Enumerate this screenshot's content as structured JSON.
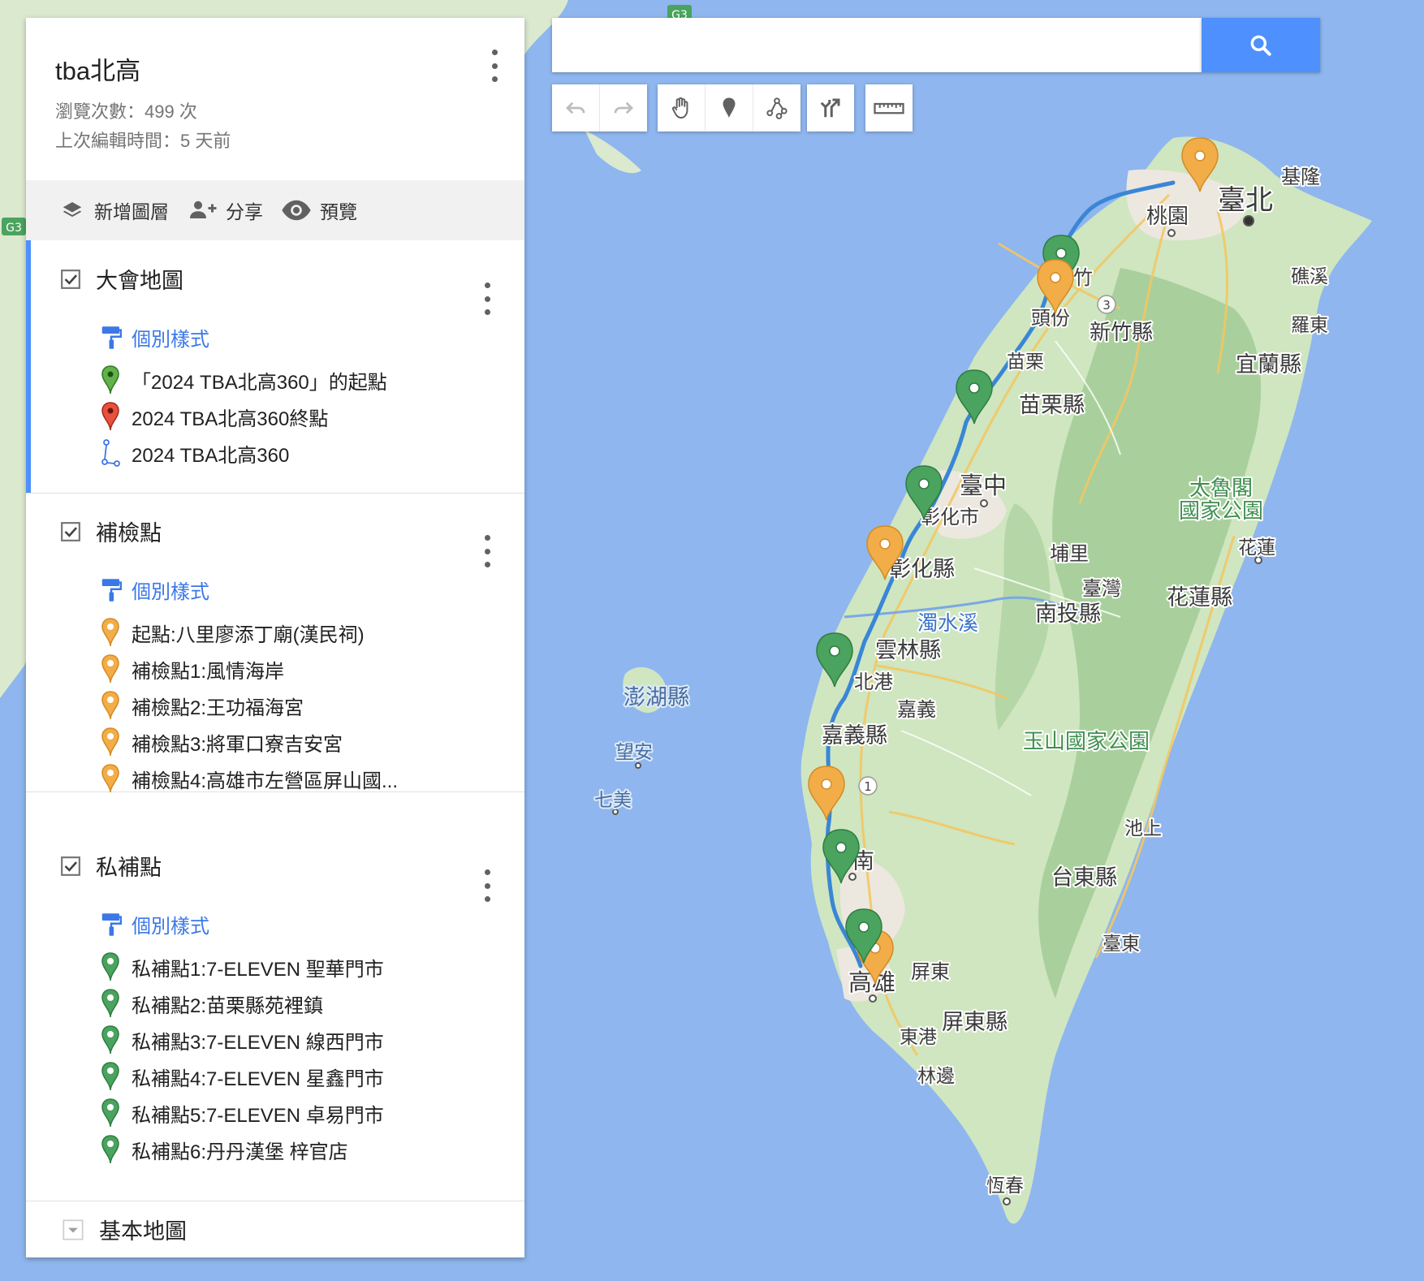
{
  "map": {
    "labels": [
      {
        "id": "keelung",
        "text": "基隆"
      },
      {
        "id": "taipei",
        "text": "臺北"
      },
      {
        "id": "taoyuan",
        "text": "桃園"
      },
      {
        "id": "hsinchu",
        "text": "竹"
      },
      {
        "id": "toufen",
        "text": "頭份"
      },
      {
        "id": "hsinchu-county",
        "text": "新竹縣"
      },
      {
        "id": "jiaoxi",
        "text": "礁溪"
      },
      {
        "id": "luodong",
        "text": "羅東"
      },
      {
        "id": "yilan-county",
        "text": "宜蘭縣"
      },
      {
        "id": "miaoli",
        "text": "苗栗"
      },
      {
        "id": "miaoli-county",
        "text": "苗栗縣"
      },
      {
        "id": "taichung",
        "text": "臺中"
      },
      {
        "id": "changhua-city",
        "text": "彰化市"
      },
      {
        "id": "taroko1",
        "text": "太魯閣"
      },
      {
        "id": "taroko2",
        "text": "國家公園"
      },
      {
        "id": "hualien",
        "text": "花蓮"
      },
      {
        "id": "puli",
        "text": "埔里"
      },
      {
        "id": "changhua-county",
        "text": "彰化縣"
      },
      {
        "id": "taiwan",
        "text": "臺灣"
      },
      {
        "id": "nantou-county",
        "text": "南投縣"
      },
      {
        "id": "hualien-county",
        "text": "花蓮縣"
      },
      {
        "id": "zhuoshui",
        "text": "濁水溪"
      },
      {
        "id": "yunlin-county",
        "text": "雲林縣"
      },
      {
        "id": "penghu",
        "text": "澎湖縣"
      },
      {
        "id": "beigang",
        "text": "北港"
      },
      {
        "id": "chiayi",
        "text": "嘉義"
      },
      {
        "id": "chiayi-county",
        "text": "嘉義縣"
      },
      {
        "id": "yushan",
        "text": "玉山國家公園"
      },
      {
        "id": "wangan",
        "text": "望安"
      },
      {
        "id": "qimei",
        "text": "七美"
      },
      {
        "id": "chishang",
        "text": "池上"
      },
      {
        "id": "tainan",
        "text": "南"
      },
      {
        "id": "taitung-county",
        "text": "台東縣"
      },
      {
        "id": "taitung",
        "text": "臺東"
      },
      {
        "id": "pingtung",
        "text": "屏東"
      },
      {
        "id": "kaohsiung",
        "text": "高雄"
      },
      {
        "id": "pingtung-county",
        "text": "屏東縣"
      },
      {
        "id": "donggang",
        "text": "東港"
      },
      {
        "id": "linbian",
        "text": "林邊"
      },
      {
        "id": "hengchun",
        "text": "恆春"
      },
      {
        "id": "route-3",
        "text": "3"
      },
      {
        "id": "route-1",
        "text": "1"
      },
      {
        "id": "g3-top",
        "text": "G3"
      },
      {
        "id": "g3-left",
        "text": "G3"
      }
    ]
  },
  "search": {
    "placeholder": ""
  },
  "header": {
    "title": "tba北高",
    "views": "瀏覽次數：499 次",
    "edited": "上次編輯時間：5 天前"
  },
  "actions": {
    "add_layer": "新增圖層",
    "share": "分享",
    "preview": "預覽"
  },
  "layers": [
    {
      "name": "大會地圖",
      "style_label": "個別樣式",
      "items": [
        {
          "label": "「2024 TBA北高360」的起點",
          "icon": "green-pin-icon"
        },
        {
          "label": "2024 TBA北高360終點",
          "icon": "red-pin-icon"
        },
        {
          "label": "2024 TBA北高360",
          "icon": "route-line-icon"
        }
      ]
    },
    {
      "name": "補檢點",
      "style_label": "個別樣式",
      "items": [
        {
          "label": "起點:八里廖添丁廟(漢民祠)",
          "icon": "orange-pin-icon"
        },
        {
          "label": "補檢點1:風情海岸",
          "icon": "orange-pin-icon"
        },
        {
          "label": "補檢點2:王功福海宮",
          "icon": "orange-pin-icon"
        },
        {
          "label": "補檢點3:將軍口寮吉安宮",
          "icon": "orange-pin-icon"
        },
        {
          "label": "補檢點4:高雄市左營區屏山國...",
          "icon": "orange-pin-icon"
        }
      ]
    },
    {
      "name": "私補點",
      "style_label": "個別樣式",
      "items": [
        {
          "label": "私補點1:7-ELEVEN 聖華門市",
          "icon": "green-pin-icon"
        },
        {
          "label": "私補點2:苗栗縣苑裡鎮",
          "icon": "green-pin-icon"
        },
        {
          "label": "私補點3:7-ELEVEN 線西門市",
          "icon": "green-pin-icon"
        },
        {
          "label": "私補點4:7-ELEVEN 星鑫門市",
          "icon": "green-pin-icon"
        },
        {
          "label": "私補點5:7-ELEVEN 卓易門市",
          "icon": "green-pin-icon"
        },
        {
          "label": "私補點6:丹丹漢堡 梓官店",
          "icon": "green-pin-icon"
        }
      ]
    }
  ],
  "base_map": {
    "label": "基本地圖"
  },
  "colors": {
    "water": "#8fb6ee",
    "land": "#cfe6c0",
    "route": "#3a86d6",
    "orange_pin": "#f2ad48",
    "green_pin": "#4aa35e",
    "red_pin": "#e8513d",
    "link": "#3b78e7"
  }
}
